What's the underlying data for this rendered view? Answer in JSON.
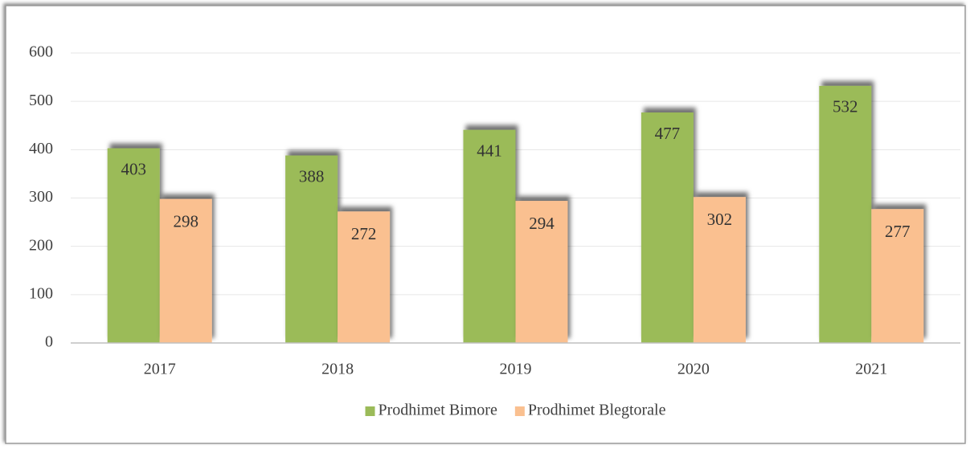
{
  "chart_data": {
    "type": "bar",
    "categories": [
      "2017",
      "2018",
      "2019",
      "2020",
      "2021"
    ],
    "series": [
      {
        "name": "Prodhimet Bimore",
        "color": "#9bbb59",
        "values": [
          403,
          388,
          441,
          477,
          532
        ]
      },
      {
        "name": "Prodhimet Blegtorale",
        "color": "#fac090",
        "values": [
          298,
          272,
          294,
          302,
          277
        ]
      }
    ],
    "ylim": [
      0,
      600
    ],
    "yticks": [
      0,
      100,
      200,
      300,
      400,
      500,
      600
    ],
    "grid": true,
    "legend": "bottom"
  }
}
